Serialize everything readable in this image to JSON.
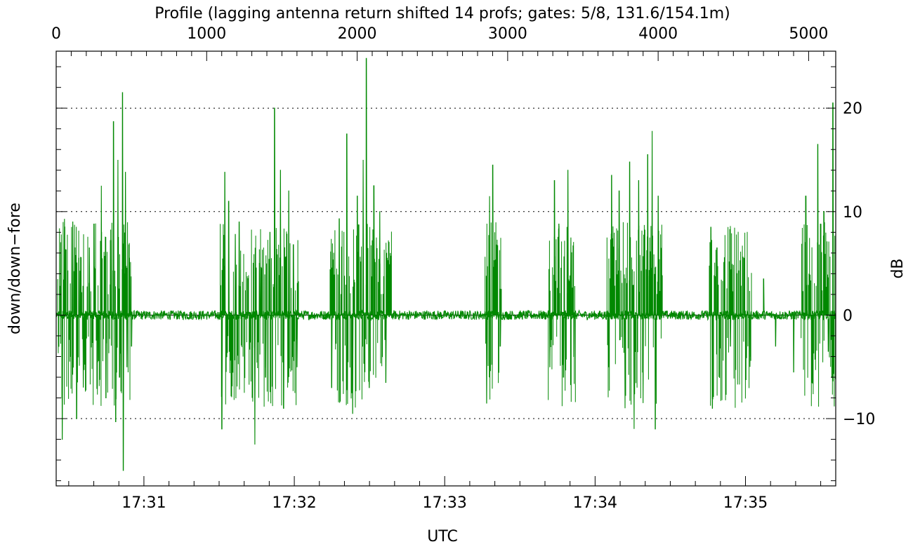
{
  "chart_data": {
    "type": "line",
    "title": "Profile (lagging antenna return shifted 14 profs; gates: 5/8, 131.6/154.1m)",
    "xlabel": "UTC",
    "ylabel_left": "down/down−fore",
    "ylabel_right": "dB",
    "xlim_top": [
      0,
      5180
    ],
    "top_ticks": [
      0,
      1000,
      2000,
      3000,
      4000,
      5000
    ],
    "top_tick_labels": [
      "0",
      "1000",
      "2000",
      "3000",
      "4000",
      "5000"
    ],
    "xlim_time": [
      "17:30:25",
      "17:35:36"
    ],
    "bottom_ticks": [
      {
        "label": "17:31",
        "seconds": 60
      },
      {
        "label": "17:32",
        "seconds": 120
      },
      {
        "label": "17:33",
        "seconds": 180
      },
      {
        "label": "17:34",
        "seconds": 240
      },
      {
        "label": "17:35",
        "seconds": 300
      }
    ],
    "time_origin_label": "17:30",
    "time_axis_start_seconds": 25,
    "time_axis_end_seconds": 336,
    "ylim": [
      -16.5,
      25.5
    ],
    "right_ticks": [
      -10,
      0,
      10,
      20
    ],
    "right_tick_labels": [
      "−10",
      "0",
      "10",
      "20"
    ],
    "gridlines_y": [
      -10,
      10,
      20
    ],
    "line_color": "#008800",
    "series": [
      {
        "values_note": "",
        "points": [
          [
            5,
            0.2
          ],
          [
            30,
            7.0
          ],
          [
            40,
            -12.0
          ],
          [
            55,
            9.3
          ],
          [
            95,
            -4.0
          ],
          [
            110,
            9.0
          ],
          [
            135,
            -10.0
          ],
          [
            150,
            5.5
          ],
          [
            180,
            -7.0
          ],
          [
            220,
            6.5
          ],
          [
            250,
            8.8
          ],
          [
            275,
            -4.5
          ],
          [
            300,
            12.5
          ],
          [
            330,
            -8.0
          ],
          [
            360,
            7.2
          ],
          [
            380,
            18.7
          ],
          [
            395,
            -10.3
          ],
          [
            410,
            15.0
          ],
          [
            420,
            -6.0
          ],
          [
            440,
            21.5
          ],
          [
            445,
            -15.0
          ],
          [
            460,
            13.8
          ],
          [
            470,
            -5.0
          ],
          [
            485,
            5.5
          ],
          [
            500,
            -3.0
          ],
          [
            1100,
            -11.0
          ],
          [
            1120,
            13.8
          ],
          [
            1145,
            11.0
          ],
          [
            1170,
            -5.5
          ],
          [
            1190,
            7.8
          ],
          [
            1215,
            9.0
          ],
          [
            1320,
            -12.5
          ],
          [
            1350,
            5.0
          ],
          [
            1390,
            -6.0
          ],
          [
            1420,
            8.0
          ],
          [
            1450,
            20.0
          ],
          [
            1490,
            14.0
          ],
          [
            1510,
            -9.0
          ],
          [
            1545,
            12.0
          ],
          [
            1575,
            6.8
          ],
          [
            1600,
            -5.0
          ],
          [
            1830,
            -7.0
          ],
          [
            1880,
            9.3
          ],
          [
            1930,
            17.5
          ],
          [
            1970,
            -9.5
          ],
          [
            2000,
            11.5
          ],
          [
            2040,
            15.0
          ],
          [
            2060,
            24.8
          ],
          [
            2080,
            -7.0
          ],
          [
            2110,
            12.5
          ],
          [
            2150,
            10.0
          ],
          [
            2190,
            -6.5
          ],
          [
            2220,
            6.0
          ],
          [
            2860,
            -8.5
          ],
          [
            2880,
            11.5
          ],
          [
            2900,
            14.5
          ],
          [
            2920,
            5.0
          ],
          [
            2950,
            -3.0
          ],
          [
            3280,
            -5.0
          ],
          [
            3310,
            13.0
          ],
          [
            3340,
            8.8
          ],
          [
            3370,
            -6.0
          ],
          [
            3400,
            14.0
          ],
          [
            3420,
            7.5
          ],
          [
            3440,
            -4.0
          ],
          [
            3670,
            -5.0
          ],
          [
            3690,
            13.5
          ],
          [
            3740,
            12.0
          ],
          [
            3780,
            -9.0
          ],
          [
            3810,
            14.8
          ],
          [
            3840,
            -11.0
          ],
          [
            3870,
            13.0
          ],
          [
            3900,
            -8.5
          ],
          [
            3930,
            15.5
          ],
          [
            3960,
            17.8
          ],
          [
            3980,
            -11.0
          ],
          [
            4000,
            11.5
          ],
          [
            4020,
            6.5
          ],
          [
            4350,
            8.5
          ],
          [
            4360,
            -9.0
          ],
          [
            4390,
            6.5
          ],
          [
            4480,
            -3.0
          ],
          [
            4570,
            5.5
          ],
          [
            4610,
            -5.0
          ],
          [
            4700,
            3.5
          ],
          [
            4780,
            -3.0
          ],
          [
            4900,
            -5.5
          ],
          [
            4980,
            11.5
          ],
          [
            5020,
            -6.5
          ],
          [
            5060,
            16.5
          ],
          [
            5100,
            10.0
          ],
          [
            5130,
            -3.5
          ],
          [
            5160,
            20.5
          ]
        ]
      }
    ]
  }
}
